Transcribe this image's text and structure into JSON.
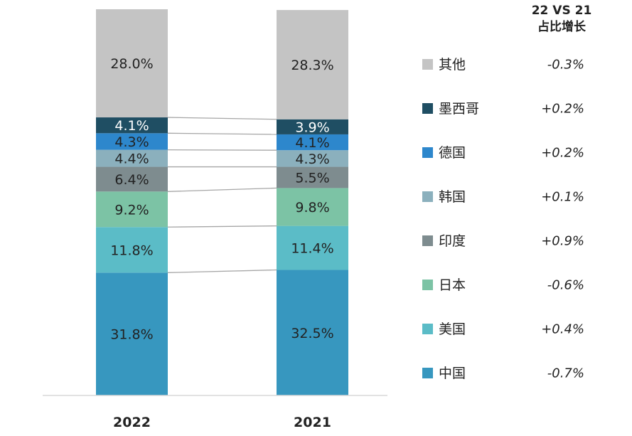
{
  "chart_data": {
    "type": "bar",
    "stacked": true,
    "categories": [
      "2022",
      "2021"
    ],
    "series": [
      {
        "name": "中国",
        "color": "#3797bf",
        "values": [
          31.8,
          32.5
        ],
        "labels": [
          "31.8%",
          "32.5%"
        ],
        "delta": "-0.7%"
      },
      {
        "name": "美国",
        "color": "#5bbcc7",
        "values": [
          11.8,
          11.4
        ],
        "labels": [
          "11.8%",
          "11.4%"
        ],
        "delta": "+0.4%"
      },
      {
        "name": "日本",
        "color": "#7cc3a5",
        "values": [
          9.2,
          9.8
        ],
        "labels": [
          "9.2%",
          "9.8%"
        ],
        "delta": "-0.6%"
      },
      {
        "name": "印度",
        "color": "#7e8c8f",
        "values": [
          6.4,
          5.5
        ],
        "labels": [
          "6.4%",
          "5.5%"
        ],
        "delta": "+0.9%"
      },
      {
        "name": "韩国",
        "color": "#8bb0bd",
        "values": [
          4.4,
          4.3
        ],
        "labels": [
          "4.4%",
          "4.3%"
        ],
        "delta": "+0.1%"
      },
      {
        "name": "德国",
        "color": "#2d87cc",
        "values": [
          4.3,
          4.1
        ],
        "labels": [
          "4.3%",
          "4.1%"
        ],
        "delta": "+0.2%"
      },
      {
        "name": "墨西哥",
        "color": "#1f4e63",
        "values": [
          4.1,
          3.9
        ],
        "labels": [
          "4.1%",
          "3.9%"
        ],
        "delta": "+0.2%"
      },
      {
        "name": "其他",
        "color": "#c4c4c4",
        "values": [
          28.0,
          28.3
        ],
        "labels": [
          "28.0%",
          "28.3%"
        ],
        "delta": "-0.3%"
      }
    ],
    "ylim": [
      0,
      100
    ],
    "legend_position": "right",
    "legend_header": [
      "22 VS 21",
      "占比增长"
    ],
    "grid": false
  }
}
